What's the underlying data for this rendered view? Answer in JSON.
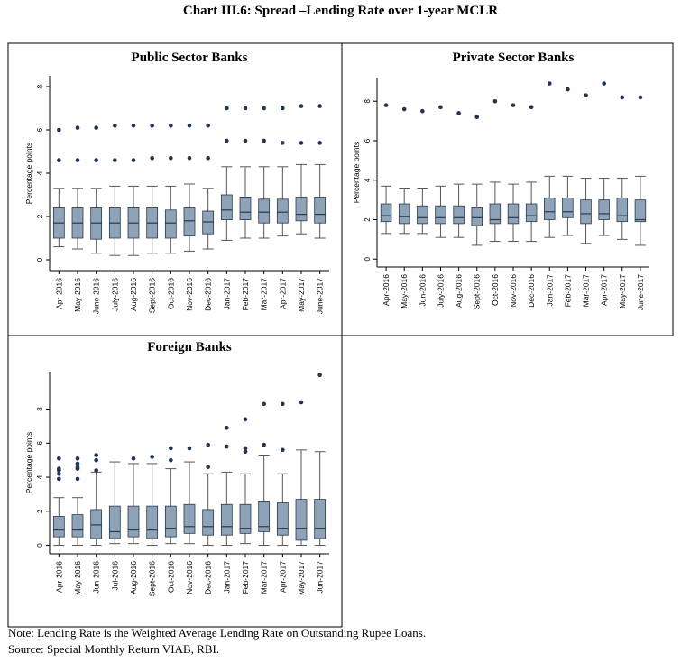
{
  "title": "Chart III.6: Spread –Lending Rate over 1-year MCLR",
  "note": "Note: Lending Rate is the Weighted Average Lending Rate on Outstanding Rupee Loans.",
  "source": "Source: Special Monthly Return VIAB, RBI.",
  "colors": {
    "box": "#8ea3b8",
    "box_stroke": "#2b3a48",
    "point": "#1f3550",
    "whisker": "#555555"
  },
  "chart_data": [
    {
      "type": "box",
      "title": "Public Sector Banks",
      "ylabel": "Percentage points",
      "ylim": [
        -0.5,
        8.5
      ],
      "yticks": [
        0,
        2,
        4,
        6,
        8
      ],
      "categories": [
        "Apr-2016",
        "May-2016",
        "June-2016",
        "July-2016",
        "Aug-2016",
        "Sept-2016",
        "Oct-2016",
        "Nov-2016",
        "Dec-2016",
        "Jan-2017",
        "Feb-2017",
        "Mar-2017",
        "Apr-2017",
        "May-2017",
        "June-2017"
      ],
      "boxes": [
        {
          "low": 0.6,
          "q1": 1.0,
          "med": 1.7,
          "q3": 2.4,
          "high": 3.3,
          "outliers": [
            4.6,
            6.0
          ]
        },
        {
          "low": 0.5,
          "q1": 1.0,
          "med": 1.7,
          "q3": 2.4,
          "high": 3.3,
          "outliers": [
            4.6,
            6.1
          ]
        },
        {
          "low": 0.3,
          "q1": 0.95,
          "med": 1.7,
          "q3": 2.4,
          "high": 3.3,
          "outliers": [
            4.6,
            6.1
          ]
        },
        {
          "low": 0.2,
          "q1": 1.0,
          "med": 1.7,
          "q3": 2.4,
          "high": 3.4,
          "outliers": [
            4.6,
            6.2
          ]
        },
        {
          "low": 0.2,
          "q1": 1.0,
          "med": 1.7,
          "q3": 2.4,
          "high": 3.4,
          "outliers": [
            4.6,
            6.2
          ]
        },
        {
          "low": 0.3,
          "q1": 1.0,
          "med": 1.7,
          "q3": 2.4,
          "high": 3.4,
          "outliers": [
            4.7,
            6.2
          ]
        },
        {
          "low": 0.3,
          "q1": 1.0,
          "med": 1.7,
          "q3": 2.3,
          "high": 3.4,
          "outliers": [
            4.7,
            6.2
          ]
        },
        {
          "low": 0.4,
          "q1": 1.1,
          "med": 1.8,
          "q3": 2.4,
          "high": 3.5,
          "outliers": [
            4.7,
            6.2
          ]
        },
        {
          "low": 0.5,
          "q1": 1.2,
          "med": 1.75,
          "q3": 2.25,
          "high": 3.3,
          "outliers": [
            4.7,
            6.2
          ]
        },
        {
          "low": 0.9,
          "q1": 1.85,
          "med": 2.3,
          "q3": 3.0,
          "high": 4.3,
          "outliers": [
            5.5,
            7.0
          ]
        },
        {
          "low": 1.0,
          "q1": 1.85,
          "med": 2.2,
          "q3": 2.9,
          "high": 4.3,
          "outliers": [
            5.5,
            7.0
          ]
        },
        {
          "low": 1.0,
          "q1": 1.7,
          "med": 2.2,
          "q3": 2.8,
          "high": 4.3,
          "outliers": [
            5.5,
            7.0
          ]
        },
        {
          "low": 1.1,
          "q1": 1.7,
          "med": 2.2,
          "q3": 2.8,
          "high": 4.3,
          "outliers": [
            5.4,
            7.0
          ]
        },
        {
          "low": 1.2,
          "q1": 1.8,
          "med": 2.1,
          "q3": 2.9,
          "high": 4.4,
          "outliers": [
            5.4,
            7.1
          ]
        },
        {
          "low": 1.0,
          "q1": 1.7,
          "med": 2.1,
          "q3": 2.9,
          "high": 4.4,
          "outliers": [
            5.4,
            7.1
          ]
        }
      ]
    },
    {
      "type": "box",
      "title": "Private Sector Banks",
      "ylabel": "Percentage points",
      "ylim": [
        -0.4,
        9.2
      ],
      "yticks": [
        0,
        2,
        4,
        6,
        8
      ],
      "categories": [
        "Apr-2016",
        "May-2016",
        "Jun-2016",
        "July-2016",
        "Aug-2016",
        "Sept-2016",
        "Oct-2016",
        "Nov-2016",
        "Dec-2016",
        "Jan-2017",
        "Feb-2017",
        "Mar-2017",
        "Apr-2017",
        "May-2017",
        "June-2017"
      ],
      "boxes": [
        {
          "low": 1.3,
          "q1": 1.9,
          "med": 2.2,
          "q3": 2.8,
          "high": 3.7,
          "outliers": [
            7.8
          ]
        },
        {
          "low": 1.3,
          "q1": 1.8,
          "med": 2.15,
          "q3": 2.8,
          "high": 3.6,
          "outliers": [
            7.6
          ]
        },
        {
          "low": 1.3,
          "q1": 1.8,
          "med": 2.1,
          "q3": 2.7,
          "high": 3.6,
          "outliers": [
            7.5
          ]
        },
        {
          "low": 1.1,
          "q1": 1.8,
          "med": 2.1,
          "q3": 2.7,
          "high": 3.7,
          "outliers": [
            7.7
          ]
        },
        {
          "low": 1.1,
          "q1": 1.8,
          "med": 2.1,
          "q3": 2.7,
          "high": 3.8,
          "outliers": [
            7.4
          ]
        },
        {
          "low": 0.7,
          "q1": 1.7,
          "med": 2.1,
          "q3": 2.6,
          "high": 3.8,
          "outliers": [
            7.2
          ]
        },
        {
          "low": 0.9,
          "q1": 1.8,
          "med": 2.0,
          "q3": 2.8,
          "high": 3.9,
          "outliers": [
            8.0
          ]
        },
        {
          "low": 0.9,
          "q1": 1.8,
          "med": 2.1,
          "q3": 2.8,
          "high": 3.8,
          "outliers": [
            7.8
          ]
        },
        {
          "low": 0.9,
          "q1": 1.9,
          "med": 2.2,
          "q3": 2.8,
          "high": 3.9,
          "outliers": [
            7.7
          ]
        },
        {
          "low": 1.1,
          "q1": 2.0,
          "med": 2.4,
          "q3": 3.1,
          "high": 4.2,
          "outliers": [
            8.9
          ]
        },
        {
          "low": 1.2,
          "q1": 2.1,
          "med": 2.4,
          "q3": 3.1,
          "high": 4.2,
          "outliers": [
            8.6
          ]
        },
        {
          "low": 0.8,
          "q1": 1.8,
          "med": 2.3,
          "q3": 3.0,
          "high": 4.1,
          "outliers": [
            8.3
          ]
        },
        {
          "low": 1.2,
          "q1": 2.0,
          "med": 2.3,
          "q3": 3.0,
          "high": 4.1,
          "outliers": [
            8.9
          ]
        },
        {
          "low": 1.0,
          "q1": 1.9,
          "med": 2.2,
          "q3": 3.1,
          "high": 4.1,
          "outliers": [
            8.2
          ]
        },
        {
          "low": 0.7,
          "q1": 1.9,
          "med": 2.0,
          "q3": 3.0,
          "high": 4.2,
          "outliers": [
            8.2
          ]
        }
      ]
    },
    {
      "type": "box",
      "title": "Foreign Banks",
      "ylabel": "Percentage points",
      "ylim": [
        -0.5,
        10.2
      ],
      "yticks": [
        0,
        2,
        4,
        6,
        8
      ],
      "categories": [
        "Apr-2016",
        "May-2016",
        "Jun-2016",
        "Jul-2016",
        "Aug-2016",
        "Sept-2016",
        "Oct-2016",
        "Nov-2016",
        "Dec-2016",
        "Jan-2017",
        "Feb-2017",
        "Mar-2017",
        "Apr-2017",
        "May-2017",
        "Jun-2017"
      ],
      "boxes": [
        {
          "low": 0.0,
          "q1": 0.5,
          "med": 0.9,
          "q3": 1.7,
          "high": 2.8,
          "outliers": [
            3.9,
            4.2,
            4.4,
            4.5,
            5.1
          ]
        },
        {
          "low": 0.0,
          "q1": 0.5,
          "med": 0.9,
          "q3": 1.8,
          "high": 2.8,
          "outliers": [
            3.9,
            4.5,
            4.6,
            4.8,
            5.1
          ]
        },
        {
          "low": 0.0,
          "q1": 0.4,
          "med": 1.2,
          "q3": 2.1,
          "high": 4.3,
          "outliers": [
            4.4,
            5.0,
            5.3
          ]
        },
        {
          "low": 0.1,
          "q1": 0.4,
          "med": 0.8,
          "q3": 2.3,
          "high": 4.9,
          "outliers": []
        },
        {
          "low": 0.1,
          "q1": 0.5,
          "med": 0.9,
          "q3": 2.3,
          "high": 4.8,
          "outliers": [
            5.1
          ]
        },
        {
          "low": 0.0,
          "q1": 0.4,
          "med": 0.9,
          "q3": 2.3,
          "high": 4.8,
          "outliers": [
            5.2
          ]
        },
        {
          "low": 0.1,
          "q1": 0.5,
          "med": 1.0,
          "q3": 2.3,
          "high": 4.5,
          "outliers": [
            5.0,
            5.7
          ]
        },
        {
          "low": 0.1,
          "q1": 0.7,
          "med": 1.1,
          "q3": 2.4,
          "high": 4.9,
          "outliers": [
            5.7
          ]
        },
        {
          "low": 0.0,
          "q1": 0.6,
          "med": 1.1,
          "q3": 2.1,
          "high": 4.2,
          "outliers": [
            4.6,
            5.9
          ]
        },
        {
          "low": 0.0,
          "q1": 0.6,
          "med": 1.1,
          "q3": 2.4,
          "high": 4.3,
          "outliers": [
            5.8,
            6.9
          ]
        },
        {
          "low": 0.1,
          "q1": 0.7,
          "med": 1.0,
          "q3": 2.4,
          "high": 4.2,
          "outliers": [
            5.5,
            5.7,
            7.4
          ]
        },
        {
          "low": 0.0,
          "q1": 0.8,
          "med": 1.1,
          "q3": 2.6,
          "high": 5.3,
          "outliers": [
            5.9,
            8.3
          ]
        },
        {
          "low": 0.0,
          "q1": 0.6,
          "med": 1.0,
          "q3": 2.5,
          "high": 4.2,
          "outliers": [
            5.6,
            8.3
          ]
        },
        {
          "low": 0.0,
          "q1": 0.3,
          "med": 1.0,
          "q3": 2.7,
          "high": 5.6,
          "outliers": [
            8.4
          ]
        },
        {
          "low": 0.0,
          "q1": 0.4,
          "med": 1.0,
          "q3": 2.7,
          "high": 5.5,
          "outliers": [
            10.0
          ]
        }
      ]
    }
  ]
}
